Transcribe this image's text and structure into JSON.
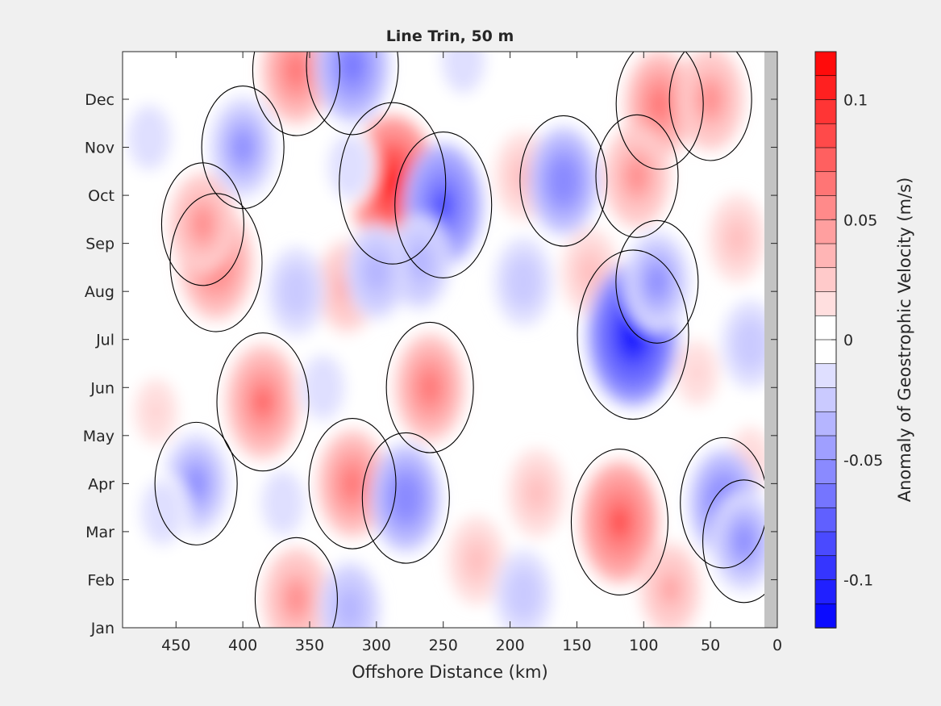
{
  "chart_data": {
    "type": "heatmap",
    "title": "Line Trin, 50 m",
    "xlabel": "Offshore Distance (km)",
    "ylabel": "",
    "x_reversed": true,
    "xlim": [
      0,
      490
    ],
    "x_ticks": [
      450,
      400,
      350,
      300,
      250,
      200,
      150,
      100,
      50,
      0
    ],
    "y_ticks": [
      "Jan",
      "Feb",
      "Mar",
      "Apr",
      "May",
      "Jun",
      "Jul",
      "Aug",
      "Sep",
      "Oct",
      "Nov",
      "Dec"
    ],
    "no_data_x_range_km": [
      0,
      10
    ],
    "zero_contour": true,
    "colorbar": {
      "label": "Anomaly of Geostrophic Velocity (m/s)",
      "range": [
        -0.12,
        0.12
      ],
      "levels": 24,
      "tick_values": [
        -0.1,
        -0.05,
        0,
        0.05,
        0.1
      ],
      "tick_labels": [
        "-0.1",
        "-0.05",
        "0",
        "0.05",
        "0.1"
      ],
      "colormap": "blue-white-red",
      "positive_color": "#ff0000",
      "negative_color": "#0000ff",
      "zero_color": "#ffffff"
    },
    "anomaly_features": [
      {
        "x_km": 288,
        "month": 9.25,
        "value": 0.1
      },
      {
        "x_km": 420,
        "month": 7.6,
        "value": 0.07
      },
      {
        "x_km": 430,
        "month": 8.4,
        "value": 0.05
      },
      {
        "x_km": 88,
        "month": 10.9,
        "value": 0.06
      },
      {
        "x_km": 50,
        "month": 11.0,
        "value": 0.05
      },
      {
        "x_km": 360,
        "month": 11.6,
        "value": 0.06
      },
      {
        "x_km": 260,
        "month": 5.0,
        "value": 0.06
      },
      {
        "x_km": 385,
        "month": 4.7,
        "value": 0.07
      },
      {
        "x_km": 318,
        "month": 3.0,
        "value": 0.06
      },
      {
        "x_km": 118,
        "month": 2.2,
        "value": 0.08
      },
      {
        "x_km": 180,
        "month": 2.8,
        "value": 0.03
      },
      {
        "x_km": 225,
        "month": 1.4,
        "value": 0.03
      },
      {
        "x_km": 80,
        "month": 0.8,
        "value": 0.04
      },
      {
        "x_km": 360,
        "month": 0.6,
        "value": 0.05
      },
      {
        "x_km": 140,
        "month": 7.4,
        "value": 0.03
      },
      {
        "x_km": 105,
        "month": 9.4,
        "value": 0.05
      },
      {
        "x_km": 30,
        "month": 8.1,
        "value": 0.03
      },
      {
        "x_km": 190,
        "month": 9.4,
        "value": 0.03
      },
      {
        "x_km": 322,
        "month": 7.1,
        "value": 0.04
      },
      {
        "x_km": 465,
        "month": 4.5,
        "value": 0.02
      },
      {
        "x_km": 20,
        "month": 3.5,
        "value": 0.02
      },
      {
        "x_km": 60,
        "month": 5.3,
        "value": 0.02
      },
      {
        "x_km": 108,
        "month": 6.1,
        "value": -0.11
      },
      {
        "x_km": 90,
        "month": 7.2,
        "value": -0.05
      },
      {
        "x_km": 250,
        "month": 8.8,
        "value": -0.08
      },
      {
        "x_km": 268,
        "month": 7.6,
        "value": -0.04
      },
      {
        "x_km": 318,
        "month": 11.7,
        "value": -0.07
      },
      {
        "x_km": 400,
        "month": 10.0,
        "value": -0.05
      },
      {
        "x_km": 160,
        "month": 9.3,
        "value": -0.06
      },
      {
        "x_km": 300,
        "month": 7.4,
        "value": -0.04
      },
      {
        "x_km": 40,
        "month": 2.6,
        "value": -0.06
      },
      {
        "x_km": 25,
        "month": 1.8,
        "value": -0.05
      },
      {
        "x_km": 278,
        "month": 2.7,
        "value": -0.06
      },
      {
        "x_km": 435,
        "month": 3.0,
        "value": -0.05
      },
      {
        "x_km": 360,
        "month": 7.0,
        "value": -0.03
      },
      {
        "x_km": 320,
        "month": 0.4,
        "value": -0.04
      },
      {
        "x_km": 190,
        "month": 0.7,
        "value": -0.03
      },
      {
        "x_km": 20,
        "month": 5.9,
        "value": -0.03
      },
      {
        "x_km": 190,
        "month": 7.2,
        "value": -0.03
      },
      {
        "x_km": 370,
        "month": 2.6,
        "value": -0.02
      },
      {
        "x_km": 340,
        "month": 5.0,
        "value": -0.02
      },
      {
        "x_km": 320,
        "month": 9.6,
        "value": -0.02
      },
      {
        "x_km": 235,
        "month": 11.8,
        "value": -0.02
      },
      {
        "x_km": 470,
        "month": 10.2,
        "value": -0.02
      },
      {
        "x_km": 460,
        "month": 2.4,
        "value": -0.02
      }
    ]
  }
}
